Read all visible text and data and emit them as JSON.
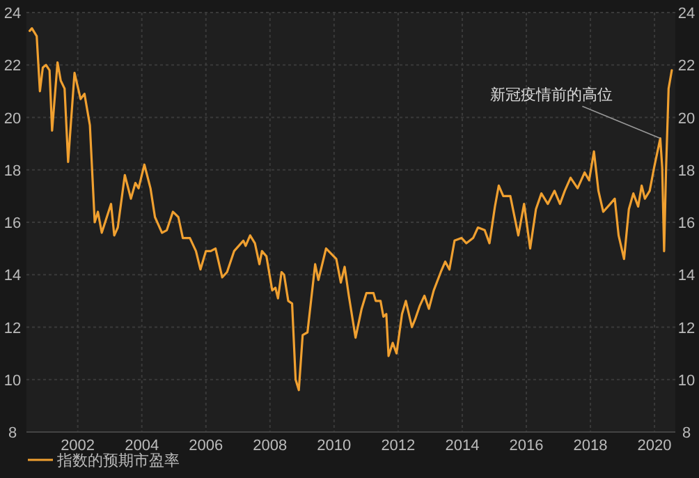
{
  "chart_data": {
    "type": "line",
    "x": [
      2000.5,
      2000.57,
      2000.72,
      2000.82,
      2000.91,
      2001.01,
      2001.12,
      2001.2,
      2001.37,
      2001.47,
      2001.59,
      2001.7,
      2001.9,
      2002.09,
      2002.21,
      2002.38,
      2002.53,
      2002.63,
      2002.75,
      2003.04,
      2003.14,
      2003.25,
      2003.47,
      2003.66,
      2003.8,
      2003.9,
      2004.08,
      2004.27,
      2004.41,
      2004.63,
      2004.78,
      2004.97,
      2005.14,
      2005.28,
      2005.5,
      2005.69,
      2005.83,
      2006.0,
      2006.15,
      2006.3,
      2006.51,
      2006.66,
      2006.88,
      2007.17,
      2007.24,
      2007.38,
      2007.53,
      2007.67,
      2007.75,
      2007.89,
      2008.07,
      2008.17,
      2008.25,
      2008.36,
      2008.44,
      2008.57,
      2008.69,
      2008.8,
      2008.9,
      2009.02,
      2009.17,
      2009.41,
      2009.51,
      2009.75,
      2010.07,
      2010.21,
      2010.33,
      2010.46,
      2010.67,
      2010.86,
      2011.01,
      2011.23,
      2011.3,
      2011.45,
      2011.54,
      2011.63,
      2011.7,
      2011.83,
      2011.95,
      2012.12,
      2012.24,
      2012.43,
      2012.53,
      2012.67,
      2012.82,
      2012.96,
      2013.11,
      2013.33,
      2013.47,
      2013.6,
      2013.76,
      2013.98,
      2014.13,
      2014.34,
      2014.49,
      2014.7,
      2014.85,
      2015.02,
      2015.14,
      2015.28,
      2015.5,
      2015.75,
      2015.93,
      2016.12,
      2016.3,
      2016.47,
      2016.67,
      2016.88,
      2017.05,
      2017.2,
      2017.38,
      2017.6,
      2017.82,
      2017.96,
      2018.11,
      2018.25,
      2018.4,
      2018.62,
      2018.76,
      2018.88,
      2019.05,
      2019.2,
      2019.34,
      2019.49,
      2019.6,
      2019.7,
      2019.85,
      2019.99,
      2020.18,
      2020.24,
      2020.3,
      2020.36,
      2020.44,
      2020.54
    ],
    "series": [
      {
        "name": "指数的预期市盈率",
        "color": "#f0a030",
        "values": [
          23.3,
          23.4,
          23.1,
          21.0,
          21.9,
          22.0,
          21.8,
          19.5,
          22.1,
          21.4,
          21.1,
          18.3,
          21.7,
          20.7,
          20.9,
          19.7,
          16.0,
          16.4,
          15.6,
          16.7,
          15.5,
          15.8,
          17.8,
          16.9,
          17.5,
          17.3,
          18.2,
          17.3,
          16.2,
          15.6,
          15.7,
          16.4,
          16.2,
          15.4,
          15.4,
          14.9,
          14.2,
          14.9,
          14.9,
          15.0,
          13.9,
          14.1,
          14.9,
          15.3,
          15.1,
          15.5,
          15.2,
          14.4,
          14.9,
          14.7,
          13.4,
          13.5,
          13.1,
          14.1,
          14.0,
          13.0,
          12.9,
          10.0,
          9.6,
          11.7,
          11.8,
          14.4,
          13.8,
          15.0,
          14.6,
          13.7,
          14.3,
          13.2,
          11.6,
          12.7,
          13.3,
          13.3,
          13.0,
          13.0,
          12.4,
          12.5,
          10.9,
          11.4,
          11.0,
          12.5,
          13.0,
          12.0,
          12.3,
          12.8,
          13.2,
          12.7,
          13.4,
          14.1,
          14.5,
          14.2,
          15.3,
          15.4,
          15.2,
          15.4,
          15.8,
          15.7,
          15.2,
          16.6,
          17.4,
          17.0,
          17.0,
          15.5,
          16.7,
          15.0,
          16.5,
          17.1,
          16.7,
          17.2,
          16.7,
          17.2,
          17.7,
          17.3,
          17.9,
          17.6,
          18.7,
          17.2,
          16.4,
          16.7,
          16.9,
          15.5,
          14.6,
          16.5,
          17.1,
          16.6,
          17.4,
          16.9,
          17.2,
          18.1,
          19.2,
          18.1,
          14.9,
          18.0,
          21.1,
          21.8
        ]
      }
    ],
    "xlim": [
      2000.4,
      2020.65
    ],
    "xticks": [
      2002,
      2004,
      2006,
      2008,
      2010,
      2012,
      2014,
      2016,
      2018,
      2020
    ],
    "ylim": [
      8,
      24
    ],
    "yticks": [
      8,
      10,
      12,
      14,
      16,
      18,
      20,
      22,
      24
    ],
    "y2lim": [
      8,
      24
    ],
    "y2ticks": [
      8,
      10,
      12,
      14,
      16,
      18,
      20,
      22,
      24
    ],
    "grid": true,
    "legend": "bottom left",
    "line_style": "solid",
    "marker": "none",
    "annotations": [
      {
        "text": "新冠疫情前的高位",
        "x": 2020.18,
        "y": 19.2
      }
    ]
  }
}
